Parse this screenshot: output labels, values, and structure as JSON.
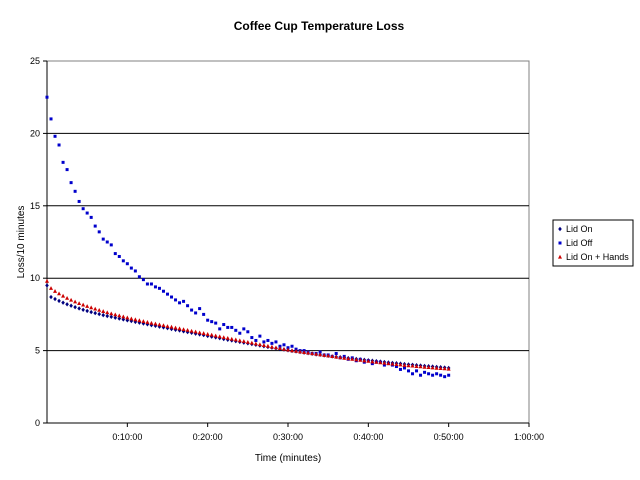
{
  "chart_data": {
    "type": "scatter",
    "title": "Coffee Cup Temperature Loss",
    "xlabel": "Time (minutes)",
    "ylabel": "Loss/10 minutes",
    "xlim": [
      0,
      60
    ],
    "ylim": [
      0,
      25
    ],
    "x_ticks": [
      10,
      20,
      30,
      40,
      50,
      60
    ],
    "x_tick_labels": [
      "0:10:00",
      "0:20:00",
      "0:30:00",
      "0:40:00",
      "0:50:00",
      "1:00:00"
    ],
    "y_ticks": [
      0,
      5,
      10,
      15,
      20,
      25
    ],
    "y_tick_labels": [
      "0",
      "5",
      "10",
      "15",
      "20",
      "25"
    ],
    "grid": "horizontal",
    "legend_position": "right",
    "series": [
      {
        "name": "Lid On",
        "color": "#00007f",
        "marker": "diamond",
        "x": [
          0,
          0.5,
          1,
          1.5,
          2,
          2.5,
          3,
          3.5,
          4,
          4.5,
          5,
          5.5,
          6,
          6.5,
          7,
          7.5,
          8,
          8.5,
          9,
          9.5,
          10,
          10.5,
          11,
          11.5,
          12,
          12.5,
          13,
          13.5,
          14,
          14.5,
          15,
          15.5,
          16,
          16.5,
          17,
          17.5,
          18,
          18.5,
          19,
          19.5,
          20,
          20.5,
          21,
          21.5,
          22,
          22.5,
          23,
          23.5,
          24,
          24.5,
          25,
          25.5,
          26,
          26.5,
          27,
          27.5,
          28,
          28.5,
          29,
          29.5,
          30,
          30.5,
          31,
          31.5,
          32,
          32.5,
          33,
          33.5,
          34,
          34.5,
          35,
          35.5,
          36,
          36.5,
          37,
          37.5,
          38,
          38.5,
          39,
          39.5,
          40,
          40.5,
          41,
          41.5,
          42,
          42.5,
          43,
          43.5,
          44,
          44.5,
          45,
          45.5,
          46,
          46.5,
          47,
          47.5,
          48,
          48.5,
          49,
          49.5,
          50
        ],
        "y": [
          9.5,
          8.7,
          8.56,
          8.43,
          8.31,
          8.2,
          8.1,
          8.0,
          7.91,
          7.82,
          7.74,
          7.66,
          7.59,
          7.52,
          7.45,
          7.39,
          7.33,
          7.27,
          7.21,
          7.15,
          7.09,
          7.04,
          6.98,
          6.93,
          6.87,
          6.82,
          6.76,
          6.71,
          6.65,
          6.6,
          6.55,
          6.49,
          6.44,
          6.39,
          6.33,
          6.28,
          6.23,
          6.17,
          6.12,
          6.07,
          6.01,
          5.96,
          5.91,
          5.86,
          5.8,
          5.75,
          5.7,
          5.65,
          5.6,
          5.55,
          5.5,
          5.45,
          5.4,
          5.35,
          5.3,
          5.25,
          5.2,
          5.16,
          5.11,
          5.07,
          5.02,
          4.98,
          4.94,
          4.9,
          4.86,
          4.82,
          4.78,
          4.74,
          4.71,
          4.67,
          4.64,
          4.6,
          4.57,
          4.54,
          4.51,
          4.48,
          4.45,
          4.42,
          4.39,
          4.36,
          4.33,
          4.3,
          4.27,
          4.24,
          4.21,
          4.18,
          4.15,
          4.13,
          4.1,
          4.07,
          4.04,
          4.02,
          3.99,
          3.97,
          3.94,
          3.92,
          3.9,
          3.87,
          3.85,
          3.83,
          3.8
        ]
      },
      {
        "name": "Lid Off",
        "color": "#0000cc",
        "marker": "square",
        "x": [
          0,
          0.5,
          1,
          1.5,
          2,
          2.5,
          3,
          3.5,
          4,
          4.5,
          5,
          5.5,
          6,
          6.5,
          7,
          7.5,
          8,
          8.5,
          9,
          9.5,
          10,
          10.5,
          11,
          11.5,
          12,
          12.5,
          13,
          13.5,
          14,
          14.5,
          15,
          15.5,
          16,
          16.5,
          17,
          17.5,
          18,
          18.5,
          19,
          19.5,
          20,
          20.5,
          21,
          21.5,
          22,
          22.5,
          23,
          23.5,
          24,
          24.5,
          25,
          25.5,
          26,
          26.5,
          27,
          27.5,
          28,
          28.5,
          29,
          29.5,
          30,
          30.5,
          31,
          31.5,
          32,
          32.5,
          33,
          33.5,
          34,
          34.5,
          35,
          35.5,
          36,
          36.5,
          37,
          37.5,
          38,
          38.5,
          39,
          39.5,
          40,
          40.5,
          41,
          41.5,
          42,
          42.5,
          43,
          43.5,
          44,
          44.5,
          45,
          45.5,
          46,
          46.5,
          47,
          47.5,
          48,
          48.5,
          49,
          49.5,
          50
        ],
        "y": [
          22.5,
          21.0,
          19.8,
          19.2,
          18.0,
          17.5,
          16.6,
          16.0,
          15.3,
          14.8,
          14.5,
          14.2,
          13.6,
          13.2,
          12.7,
          12.5,
          12.3,
          11.7,
          11.5,
          11.2,
          11.0,
          10.7,
          10.5,
          10.1,
          9.9,
          9.6,
          9.6,
          9.4,
          9.3,
          9.1,
          8.9,
          8.7,
          8.5,
          8.3,
          8.4,
          8.1,
          7.8,
          7.6,
          7.9,
          7.5,
          7.1,
          7.0,
          6.9,
          6.5,
          6.8,
          6.6,
          6.6,
          6.4,
          6.2,
          6.5,
          6.3,
          5.9,
          5.7,
          6.0,
          5.6,
          5.7,
          5.5,
          5.6,
          5.3,
          5.4,
          5.2,
          5.3,
          5.1,
          5.0,
          5.0,
          4.9,
          4.8,
          4.8,
          4.9,
          4.7,
          4.7,
          4.6,
          4.8,
          4.5,
          4.6,
          4.4,
          4.5,
          4.3,
          4.4,
          4.2,
          4.3,
          4.1,
          4.2,
          4.2,
          4.0,
          4.1,
          4.0,
          3.9,
          3.7,
          3.8,
          3.6,
          3.4,
          3.6,
          3.3,
          3.5,
          3.4,
          3.3,
          3.4,
          3.3,
          3.2,
          3.3
        ]
      },
      {
        "name": "Lid On + Hands",
        "color": "#cc0000",
        "marker": "triangle",
        "x": [
          0,
          0.5,
          1,
          1.5,
          2,
          2.5,
          3,
          3.5,
          4,
          4.5,
          5,
          5.5,
          6,
          6.5,
          7,
          7.5,
          8,
          8.5,
          9,
          9.5,
          10,
          10.5,
          11,
          11.5,
          12,
          12.5,
          13,
          13.5,
          14,
          14.5,
          15,
          15.5,
          16,
          16.5,
          17,
          17.5,
          18,
          18.5,
          19,
          19.5,
          20,
          20.5,
          21,
          21.5,
          22,
          22.5,
          23,
          23.5,
          24,
          24.5,
          25,
          25.5,
          26,
          26.5,
          27,
          27.5,
          28,
          28.5,
          29,
          29.5,
          30,
          30.5,
          31,
          31.5,
          32,
          32.5,
          33,
          33.5,
          34,
          34.5,
          35,
          35.5,
          36,
          36.5,
          37,
          37.5,
          38,
          38.5,
          39,
          39.5,
          40,
          40.5,
          41,
          41.5,
          42,
          42.5,
          43,
          43.5,
          44,
          44.5,
          45,
          45.5,
          46,
          46.5,
          47,
          47.5,
          48,
          48.5,
          49,
          49.5,
          50
        ],
        "y": [
          9.8,
          9.3,
          9.1,
          8.93,
          8.77,
          8.62,
          8.49,
          8.37,
          8.26,
          8.16,
          8.06,
          7.97,
          7.88,
          7.79,
          7.71,
          7.63,
          7.55,
          7.48,
          7.41,
          7.34,
          7.27,
          7.2,
          7.14,
          7.08,
          7.02,
          6.96,
          6.9,
          6.85,
          6.79,
          6.74,
          6.68,
          6.63,
          6.57,
          6.52,
          6.46,
          6.41,
          6.35,
          6.3,
          6.24,
          6.19,
          6.13,
          6.08,
          6.02,
          5.97,
          5.91,
          5.86,
          5.8,
          5.75,
          5.69,
          5.64,
          5.58,
          5.53,
          5.47,
          5.42,
          5.36,
          5.31,
          5.25,
          5.2,
          5.15,
          5.1,
          5.05,
          5.0,
          4.96,
          4.92,
          4.88,
          4.84,
          4.8,
          4.76,
          4.72,
          4.68,
          4.64,
          4.6,
          4.56,
          4.52,
          4.48,
          4.44,
          4.41,
          4.37,
          4.34,
          4.3,
          4.27,
          4.23,
          4.2,
          4.17,
          4.14,
          4.11,
          4.08,
          4.05,
          4.02,
          3.99,
          3.96,
          3.94,
          3.91,
          3.89,
          3.86,
          3.84,
          3.81,
          3.79,
          3.77,
          3.75,
          3.73
        ]
      }
    ]
  }
}
